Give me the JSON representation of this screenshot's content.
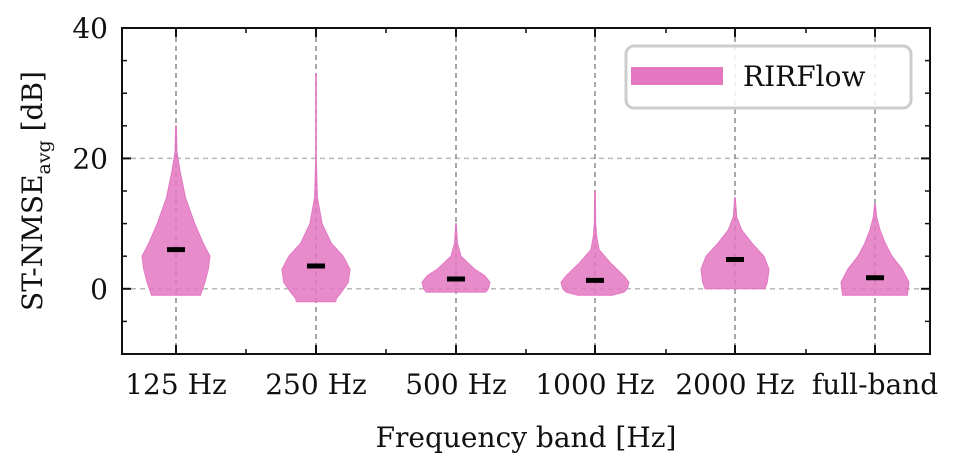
{
  "chart_data": {
    "type": "violin",
    "categories": [
      "125 Hz",
      "250 Hz",
      "500 Hz",
      "1000 Hz",
      "2000 Hz",
      "full-band"
    ],
    "series": [
      {
        "name": "RIRFlow",
        "color": "#e377c2",
        "medians": [
          6.0,
          3.5,
          1.5,
          1.3,
          4.5,
          1.7
        ],
        "mins": [
          -1.0,
          -2.0,
          -0.5,
          -1.0,
          0.0,
          -1.0
        ],
        "maxs": [
          25.0,
          33.0,
          10.0,
          15.0,
          14.0,
          13.0
        ],
        "density_profiles": [
          [
            [
              25,
              0.01
            ],
            [
              21,
              0.03
            ],
            [
              18,
              0.12
            ],
            [
              14,
              0.28
            ],
            [
              10,
              0.55
            ],
            [
              7,
              0.8
            ],
            [
              5,
              1.0
            ],
            [
              3,
              0.95
            ],
            [
              1,
              0.85
            ],
            [
              -0.5,
              0.75
            ],
            [
              -1,
              0.72
            ]
          ],
          [
            [
              33,
              0.01
            ],
            [
              20,
              0.01
            ],
            [
              14,
              0.04
            ],
            [
              10,
              0.18
            ],
            [
              7,
              0.45
            ],
            [
              5,
              0.8
            ],
            [
              3,
              1.0
            ],
            [
              1,
              0.95
            ],
            [
              -0.5,
              0.75
            ],
            [
              -1.5,
              0.6
            ],
            [
              -2,
              0.58
            ]
          ],
          [
            [
              10,
              0.01
            ],
            [
              7,
              0.04
            ],
            [
              5,
              0.15
            ],
            [
              3,
              0.55
            ],
            [
              2,
              0.85
            ],
            [
              1,
              1.0
            ],
            [
              0,
              0.95
            ],
            [
              -0.5,
              0.88
            ]
          ],
          [
            [
              15,
              0.01
            ],
            [
              13,
              0.015
            ],
            [
              10,
              0.02
            ],
            [
              8,
              0.05
            ],
            [
              6,
              0.12
            ],
            [
              4,
              0.45
            ],
            [
              2,
              0.85
            ],
            [
              1,
              1.0
            ],
            [
              0,
              0.95
            ],
            [
              -0.5,
              0.85
            ],
            [
              -1,
              0.5
            ]
          ],
          [
            [
              14,
              0.01
            ],
            [
              11,
              0.05
            ],
            [
              9,
              0.2
            ],
            [
              7,
              0.5
            ],
            [
              5,
              0.85
            ],
            [
              3,
              1.0
            ],
            [
              1,
              0.95
            ],
            [
              0,
              0.88
            ]
          ],
          [
            [
              13,
              0.01
            ],
            [
              11,
              0.05
            ],
            [
              9,
              0.15
            ],
            [
              7,
              0.3
            ],
            [
              5,
              0.5
            ],
            [
              3,
              0.8
            ],
            [
              1,
              1.0
            ],
            [
              0,
              0.98
            ],
            [
              -1,
              0.95
            ]
          ]
        ]
      }
    ],
    "xlabel": "Frequency band [Hz]",
    "ylabel_main": "ST-NMSE",
    "ylabel_sub": "avg",
    "ylabel_unit": " [dB]",
    "ylim": [
      -10,
      40
    ],
    "yticks": [
      0,
      20,
      40
    ],
    "yticks_minor": [
      -10,
      -5,
      5,
      10,
      15,
      25,
      30,
      35
    ],
    "grid": true,
    "legend_position": "upper right"
  }
}
